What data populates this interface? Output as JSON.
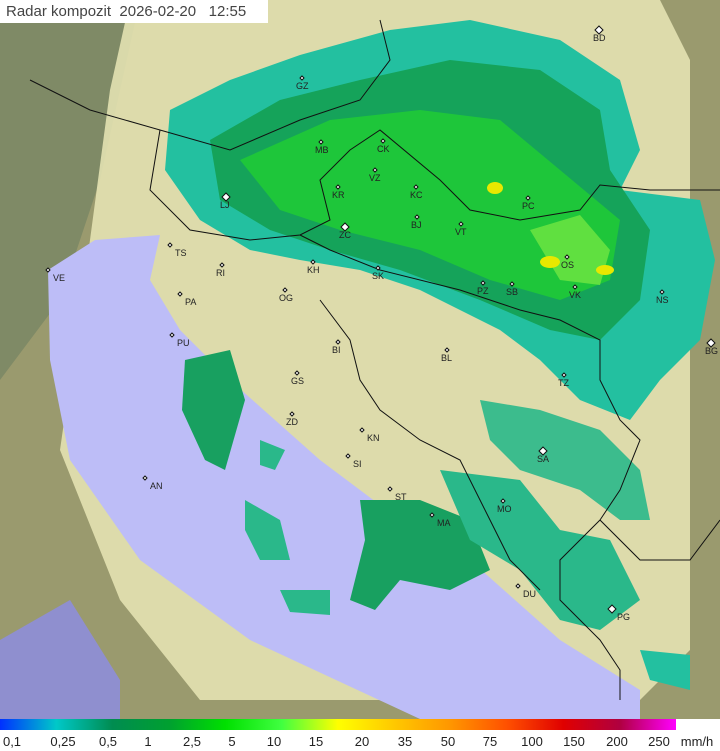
{
  "title": {
    "label": "Radar kompozit",
    "date": "2026-02-20",
    "time": "12:55"
  },
  "legend": {
    "unit": "mm/h",
    "ticks": [
      "0,1",
      "0,25",
      "0,5",
      "1",
      "2,5",
      "5",
      "10",
      "15",
      "20",
      "35",
      "50",
      "75",
      "100",
      "150",
      "200",
      "250"
    ],
    "colors": [
      "#0030ff",
      "#00c8c8",
      "#008c50",
      "#00a030",
      "#00e000",
      "#40ff40",
      "#ffff00",
      "#ffc800",
      "#ff9600",
      "#ff5000",
      "#e00000",
      "#b00040",
      "#ff00ff"
    ]
  },
  "cities": [
    {
      "code": "BD"
    },
    {
      "code": "GZ"
    },
    {
      "code": "MB"
    },
    {
      "code": "CK"
    },
    {
      "code": "VZ"
    },
    {
      "code": "KR"
    },
    {
      "code": "KC"
    },
    {
      "code": "LJ"
    },
    {
      "code": "ZC"
    },
    {
      "code": "BJ"
    },
    {
      "code": "VT"
    },
    {
      "code": "PC"
    },
    {
      "code": "KH"
    },
    {
      "code": "SK"
    },
    {
      "code": "OS"
    },
    {
      "code": "VK"
    },
    {
      "code": "PZ"
    },
    {
      "code": "SB"
    },
    {
      "code": "NS"
    },
    {
      "code": "TS"
    },
    {
      "code": "VE"
    },
    {
      "code": "RI"
    },
    {
      "code": "PA"
    },
    {
      "code": "OG"
    },
    {
      "code": "PU"
    },
    {
      "code": "BI"
    },
    {
      "code": "BL"
    },
    {
      "code": "BG"
    },
    {
      "code": "GS"
    },
    {
      "code": "TZ"
    },
    {
      "code": "ZD"
    },
    {
      "code": "KN"
    },
    {
      "code": "SA"
    },
    {
      "code": "SI"
    },
    {
      "code": "ST"
    },
    {
      "code": "AN"
    },
    {
      "code": "MA"
    },
    {
      "code": "MO"
    },
    {
      "code": "DU"
    },
    {
      "code": "PG"
    }
  ]
}
